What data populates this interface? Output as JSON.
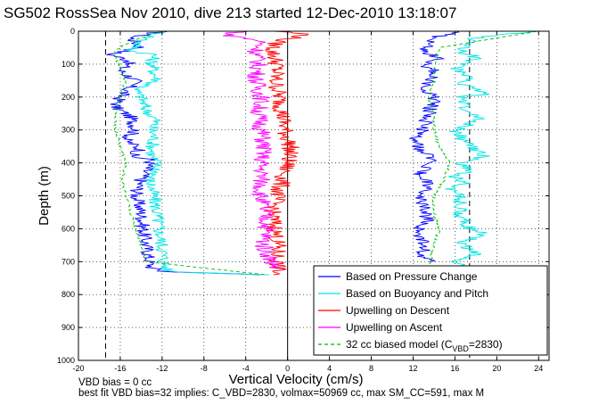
{
  "chart_data": {
    "type": "line",
    "title": "SG502 RossSea Nov 2010, dive 213 started 12-Dec-2010 13:18:07",
    "xlabel": "Vertical Velocity (cm/s)",
    "ylabel": "Depth (m)",
    "xlim": [
      -20,
      25
    ],
    "ylim": [
      0,
      1000
    ],
    "y_reversed": true,
    "grid": true,
    "grid_style": "dotted",
    "xticks": [
      "-20",
      "-16",
      "-12",
      "-8",
      "-4",
      "0",
      "4",
      "8",
      "12",
      "16",
      "20",
      "24"
    ],
    "xtick_values": [
      -20,
      -16,
      -12,
      -8,
      -4,
      0,
      4,
      8,
      12,
      16,
      20,
      24
    ],
    "yticks": [
      "0",
      "100",
      "200",
      "300",
      "400",
      "500",
      "600",
      "700",
      "800",
      "900",
      "1000"
    ],
    "ytick_values": [
      0,
      100,
      200,
      300,
      400,
      500,
      600,
      700,
      800,
      900,
      1000
    ],
    "reference_lines_x": [
      -17.4,
      0,
      17.4
    ],
    "legend_position": "bottom-right",
    "series": [
      {
        "name": "Based on Pressure Change",
        "color": "#0000ff",
        "style": "solid",
        "depth_samples": [
          {
            "phase": "descent",
            "depth": [
              0,
              20,
              50,
              70,
              90,
              120,
              150,
              200,
              230,
              260,
              300,
              330,
              360,
              380,
              390,
              420,
              450,
              500,
              550,
              600,
              650,
              700,
              720,
              730,
              740
            ],
            "velocity": [
              -12,
              -15,
              -14,
              -17,
              -15,
              -16,
              -14.5,
              -16,
              -16.5,
              -15,
              -14.5,
              -15.5,
              -14,
              -15,
              -13,
              -13.5,
              -14,
              -14.5,
              -14,
              -13.8,
              -13.5,
              -13.2,
              -13,
              -12,
              -2
            ]
          },
          {
            "phase": "ascent",
            "depth": [
              700,
              690,
              650,
              600,
              580,
              550,
              500,
              460,
              440,
              420,
              400,
              380,
              360,
              330,
              300,
              250,
              200,
              180,
              150,
              120,
              100,
              80,
              60,
              40,
              20,
              0
            ],
            "velocity": [
              14,
              13,
              13,
              12.5,
              13.5,
              13,
              12.8,
              13.5,
              12.5,
              13,
              14,
              13.5,
              12.5,
              12.3,
              13,
              13.5,
              14,
              13,
              13.5,
              14,
              13,
              14.5,
              13,
              13.5,
              14,
              16
            ]
          }
        ]
      },
      {
        "name": "Based on Buoyancy and Pitch",
        "color": "#00e5e5",
        "style": "solid",
        "depth_samples": [
          {
            "phase": "descent",
            "depth": [
              0,
              30,
              60,
              70,
              100,
              150,
              180,
              200,
              240,
              270,
              300,
              320,
              380,
              400,
              430,
              450,
              500,
              550,
              600,
              650,
              700,
              730,
              740
            ],
            "velocity": [
              -12,
              -14,
              -15,
              -12.8,
              -13,
              -12.5,
              -14.5,
              -14,
              -13.5,
              -12.6,
              -13,
              -12.8,
              -13,
              -12.5,
              -12.6,
              -13.2,
              -12.8,
              -12.5,
              -12.3,
              -12,
              -11.8,
              -11.5,
              -2
            ]
          },
          {
            "phase": "ascent",
            "depth": [
              720,
              700,
              680,
              640,
              620,
              600,
              560,
              500,
              480,
              460,
              440,
              420,
              400,
              380,
              340,
              300,
              270,
              240,
              200,
              190,
              160,
              140,
              110,
              80,
              60,
              40,
              20,
              0
            ],
            "velocity": [
              17,
              16,
              18,
              16.5,
              19,
              17.5,
              16.5,
              16.5,
              15.5,
              17,
              16,
              17.5,
              16.5,
              19,
              17,
              16,
              18.5,
              17,
              16.5,
              19.5,
              16.5,
              17.5,
              16,
              18,
              16.5,
              17,
              18,
              24
            ]
          }
        ]
      },
      {
        "name": "Upwelling on Descent",
        "color": "#ff0000",
        "style": "solid",
        "depth_samples": [
          {
            "phase": "descent",
            "depth": [
              0,
              10,
              30,
              60,
              100,
              150,
              200,
              250,
              300,
              350,
              400,
              450,
              500,
              550,
              600,
              650,
              700,
              740
            ],
            "velocity": [
              -1,
              2,
              -1,
              -1.5,
              -1,
              -1.2,
              -0.8,
              -0.5,
              -0.3,
              0.3,
              0,
              -0.5,
              -1,
              -1.5,
              -1.2,
              -1,
              -1,
              -1
            ]
          }
        ]
      },
      {
        "name": "Upwelling on Ascent",
        "color": "#ff00ff",
        "style": "solid",
        "depth_samples": [
          {
            "phase": "ascent",
            "depth": [
              0,
              10,
              30,
              60,
              100,
              150,
              200,
              250,
              300,
              350,
              400,
              450,
              500,
              550,
              600,
              650,
              700,
              720
            ],
            "velocity": [
              -4,
              -6,
              -2.5,
              -3,
              -2.8,
              -3,
              -2.5,
              -2.8,
              -2.5,
              -2.3,
              -2.5,
              -2.5,
              -2.6,
              -2.2,
              -2,
              -2.3,
              -1.5,
              -1
            ]
          }
        ]
      },
      {
        "name": "32 cc biased model (C",
        "subscript": "VBD",
        "name_suffix": "=2830)",
        "color": "#00bb00",
        "style": "dashed",
        "depth_samples": [
          {
            "phase": "descent",
            "depth": [
              0,
              30,
              60,
              100,
              150,
              200,
              250,
              300,
              350,
              400,
              450,
              500,
              550,
              600,
              650,
              700,
              740
            ],
            "velocity": [
              -12,
              -15,
              -16.5,
              -16.2,
              -15.5,
              -16,
              -16.5,
              -16.5,
              -16,
              -15.5,
              -15.8,
              -15.5,
              -15,
              -14.5,
              -14,
              -13.5,
              -2
            ]
          },
          {
            "phase": "ascent",
            "depth": [
              720,
              650,
              600,
              550,
              500,
              450,
              400,
              350,
              300,
              250,
              200,
              150,
              100,
              50,
              0
            ],
            "velocity": [
              13.5,
              14,
              14.5,
              14,
              14,
              15,
              15.5,
              14.5,
              14,
              14,
              13.5,
              14,
              14,
              14.5,
              24
            ]
          }
        ]
      }
    ],
    "annotations": [
      "VBD bias = 0 cc",
      "best fit VBD bias=32 implies: C_VBD=2830, volmax=50969 cc, max SM_CC=591, max M"
    ]
  }
}
